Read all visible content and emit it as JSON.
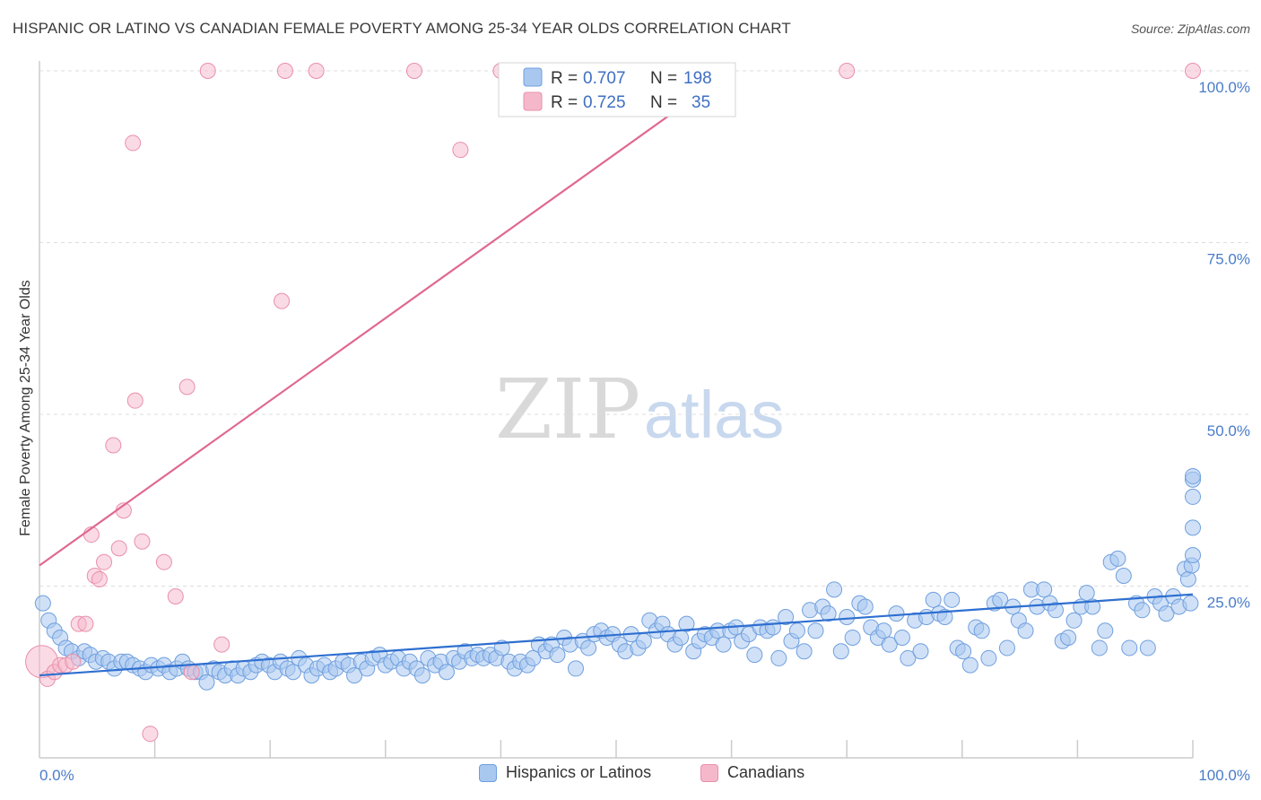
{
  "header": {
    "title": "HISPANIC OR LATINO VS CANADIAN FEMALE POVERTY AMONG 25-34 YEAR OLDS CORRELATION CHART",
    "source": "Source: ZipAtlas.com"
  },
  "watermark": {
    "zip": "ZIP",
    "atlas": "atlas"
  },
  "legend_box": {
    "rows": [
      {
        "r_label": "R = ",
        "r_value": "0.707",
        "n_label": "N = ",
        "n_value": "198"
      },
      {
        "r_label": "R = ",
        "r_value": "0.725",
        "n_label": "N = ",
        "n_value": "35"
      }
    ]
  },
  "bottom_legend": {
    "series1": "Hispanics or Latinos",
    "series2": "Canadians"
  },
  "colors": {
    "blue_fill": "#a9c8f0",
    "blue_stroke": "#6f9fde",
    "blue_line": "#2e6fd0",
    "pink_fill": "#f5b8cb",
    "pink_stroke": "#ea8fab",
    "pink_line": "#e06892",
    "tick_text": "#4a7cc9",
    "grid": "#dddddd"
  },
  "chart_data": {
    "type": "scatter",
    "title": "HISPANIC OR LATINO VS CANADIAN FEMALE POVERTY AMONG 25-34 YEAR OLDS CORRELATION CHART",
    "xlabel": "",
    "ylabel": "Female Poverty Among 25-34 Year Olds",
    "xlim": [
      0,
      100
    ],
    "ylim": [
      0,
      100
    ],
    "x_tick_labels": [
      "0.0%",
      "100.0%"
    ],
    "y_ticks": [
      25,
      50,
      75,
      100
    ],
    "y_tick_labels": [
      "25.0%",
      "50.0%",
      "75.0%",
      "100.0%"
    ],
    "grid": true,
    "legend_position": "top-center",
    "series": [
      {
        "name": "Hispanics or Latinos",
        "color": "#a9c8f0",
        "R": 0.707,
        "N": 198,
        "trend": [
          [
            0,
            12.0
          ],
          [
            100,
            23.8
          ]
        ],
        "points": [
          [
            0.3,
            22.5
          ],
          [
            0.8,
            20.0
          ],
          [
            1.3,
            18.5
          ],
          [
            1.8,
            17.5
          ],
          [
            2.3,
            16.0
          ],
          [
            2.8,
            15.5
          ],
          [
            3.4,
            14.5
          ],
          [
            3.9,
            15.5
          ],
          [
            4.4,
            15.0
          ],
          [
            4.9,
            14.0
          ],
          [
            5.5,
            14.5
          ],
          [
            6.0,
            14.0
          ],
          [
            6.5,
            13.0
          ],
          [
            7.1,
            14.0
          ],
          [
            7.6,
            14.0
          ],
          [
            8.1,
            13.5
          ],
          [
            8.7,
            13.0
          ],
          [
            9.2,
            12.5
          ],
          [
            9.7,
            13.5
          ],
          [
            10.3,
            13.0
          ],
          [
            10.8,
            13.5
          ],
          [
            11.3,
            12.5
          ],
          [
            11.9,
            13.0
          ],
          [
            12.4,
            14.0
          ],
          [
            12.9,
            13.0
          ],
          [
            13.5,
            12.5
          ],
          [
            14.0,
            12.5
          ],
          [
            14.5,
            11.0
          ],
          [
            15.1,
            13.0
          ],
          [
            15.6,
            12.5
          ],
          [
            16.1,
            12.0
          ],
          [
            16.7,
            13.0
          ],
          [
            17.2,
            12.0
          ],
          [
            17.7,
            13.0
          ],
          [
            18.3,
            12.5
          ],
          [
            18.8,
            13.5
          ],
          [
            19.3,
            14.0
          ],
          [
            19.9,
            13.5
          ],
          [
            20.4,
            12.5
          ],
          [
            20.9,
            14.0
          ],
          [
            21.5,
            13.0
          ],
          [
            22.0,
            12.5
          ],
          [
            22.5,
            14.5
          ],
          [
            23.1,
            13.5
          ],
          [
            23.6,
            12.0
          ],
          [
            24.1,
            13.0
          ],
          [
            24.7,
            13.5
          ],
          [
            25.2,
            12.5
          ],
          [
            25.7,
            13.0
          ],
          [
            26.3,
            14.0
          ],
          [
            26.8,
            13.5
          ],
          [
            27.3,
            12.0
          ],
          [
            27.9,
            14.0
          ],
          [
            28.4,
            13.0
          ],
          [
            28.9,
            14.5
          ],
          [
            29.5,
            15.0
          ],
          [
            30.0,
            13.5
          ],
          [
            30.5,
            14.0
          ],
          [
            31.1,
            14.5
          ],
          [
            31.6,
            13.0
          ],
          [
            32.1,
            14.0
          ],
          [
            32.7,
            13.0
          ],
          [
            33.2,
            12.0
          ],
          [
            33.7,
            14.5
          ],
          [
            34.3,
            13.5
          ],
          [
            34.8,
            14.0
          ],
          [
            35.3,
            12.5
          ],
          [
            35.9,
            14.5
          ],
          [
            36.4,
            14.0
          ],
          [
            36.9,
            15.5
          ],
          [
            37.5,
            14.5
          ],
          [
            38.0,
            15.0
          ],
          [
            38.5,
            14.5
          ],
          [
            39.1,
            15.0
          ],
          [
            39.6,
            14.5
          ],
          [
            40.1,
            16.0
          ],
          [
            40.7,
            14.0
          ],
          [
            41.2,
            13.0
          ],
          [
            41.7,
            14.0
          ],
          [
            42.3,
            13.5
          ],
          [
            42.8,
            14.5
          ],
          [
            43.3,
            16.5
          ],
          [
            43.9,
            15.5
          ],
          [
            44.4,
            16.5
          ],
          [
            44.9,
            15.0
          ],
          [
            45.5,
            17.5
          ],
          [
            46.0,
            16.5
          ],
          [
            46.5,
            13.0
          ],
          [
            47.1,
            17.0
          ],
          [
            47.6,
            16.0
          ],
          [
            48.1,
            18.0
          ],
          [
            48.7,
            18.5
          ],
          [
            49.2,
            17.5
          ],
          [
            49.7,
            18.0
          ],
          [
            50.3,
            16.5
          ],
          [
            50.8,
            15.5
          ],
          [
            51.3,
            18.0
          ],
          [
            51.9,
            16.0
          ],
          [
            52.4,
            17.0
          ],
          [
            52.9,
            20.0
          ],
          [
            53.5,
            18.5
          ],
          [
            54.0,
            19.5
          ],
          [
            54.5,
            18.0
          ],
          [
            55.1,
            16.5
          ],
          [
            55.6,
            17.5
          ],
          [
            56.1,
            19.5
          ],
          [
            56.7,
            15.5
          ],
          [
            57.2,
            17.0
          ],
          [
            57.7,
            18.0
          ],
          [
            58.3,
            17.5
          ],
          [
            58.8,
            18.5
          ],
          [
            59.3,
            16.5
          ],
          [
            59.9,
            18.5
          ],
          [
            60.4,
            19.0
          ],
          [
            60.9,
            17.0
          ],
          [
            61.5,
            18.0
          ],
          [
            62.0,
            15.0
          ],
          [
            62.5,
            19.0
          ],
          [
            63.1,
            18.5
          ],
          [
            63.6,
            19.0
          ],
          [
            64.1,
            14.5
          ],
          [
            64.7,
            20.5
          ],
          [
            65.2,
            17.0
          ],
          [
            65.7,
            18.5
          ],
          [
            66.3,
            15.5
          ],
          [
            66.8,
            21.5
          ],
          [
            67.3,
            18.5
          ],
          [
            67.9,
            22.0
          ],
          [
            68.4,
            21.0
          ],
          [
            68.9,
            24.5
          ],
          [
            69.5,
            15.5
          ],
          [
            70.0,
            20.5
          ],
          [
            70.5,
            17.5
          ],
          [
            71.1,
            22.5
          ],
          [
            71.6,
            22.0
          ],
          [
            72.1,
            19.0
          ],
          [
            72.7,
            17.5
          ],
          [
            73.2,
            18.5
          ],
          [
            73.7,
            16.5
          ],
          [
            74.3,
            21.0
          ],
          [
            74.8,
            17.5
          ],
          [
            75.3,
            14.5
          ],
          [
            75.9,
            20.0
          ],
          [
            76.4,
            15.5
          ],
          [
            76.9,
            20.5
          ],
          [
            77.5,
            23.0
          ],
          [
            78.0,
            21.0
          ],
          [
            78.5,
            20.5
          ],
          [
            79.1,
            23.0
          ],
          [
            79.6,
            16.0
          ],
          [
            80.1,
            15.5
          ],
          [
            80.7,
            13.5
          ],
          [
            81.2,
            19.0
          ],
          [
            81.7,
            18.5
          ],
          [
            82.3,
            14.5
          ],
          [
            82.8,
            22.5
          ],
          [
            83.3,
            23.0
          ],
          [
            83.9,
            16.0
          ],
          [
            84.4,
            22.0
          ],
          [
            84.9,
            20.0
          ],
          [
            85.5,
            18.5
          ],
          [
            86.0,
            24.5
          ],
          [
            86.5,
            22.0
          ],
          [
            87.1,
            24.5
          ],
          [
            87.6,
            22.5
          ],
          [
            88.1,
            21.5
          ],
          [
            88.7,
            17.0
          ],
          [
            89.2,
            17.5
          ],
          [
            89.7,
            20.0
          ],
          [
            90.3,
            22.0
          ],
          [
            90.8,
            24.0
          ],
          [
            91.3,
            22.0
          ],
          [
            91.9,
            16.0
          ],
          [
            92.4,
            18.5
          ],
          [
            92.9,
            28.5
          ],
          [
            93.5,
            29.0
          ],
          [
            94.0,
            26.5
          ],
          [
            94.5,
            16.0
          ],
          [
            95.1,
            22.5
          ],
          [
            95.6,
            21.5
          ],
          [
            96.1,
            16.0
          ],
          [
            96.7,
            23.5
          ],
          [
            97.2,
            22.5
          ],
          [
            97.7,
            21.0
          ],
          [
            98.3,
            23.5
          ],
          [
            98.8,
            22.0
          ],
          [
            99.3,
            27.5
          ],
          [
            99.6,
            26.0
          ],
          [
            99.8,
            22.5
          ],
          [
            99.9,
            28.0
          ],
          [
            100.0,
            33.5
          ],
          [
            100.0,
            29.5
          ],
          [
            100.0,
            38.0
          ],
          [
            100.0,
            40.5
          ],
          [
            100.0,
            41.0
          ]
        ]
      },
      {
        "name": "Canadians",
        "color": "#f5b8cb",
        "R": 0.725,
        "N": 35,
        "trend": [
          [
            0,
            28.0
          ],
          [
            60,
            100
          ]
        ],
        "points": [
          [
            0.2,
            14.0
          ],
          [
            0.7,
            11.5
          ],
          [
            1.3,
            12.5
          ],
          [
            1.8,
            13.5
          ],
          [
            2.3,
            13.5
          ],
          [
            2.9,
            14.0
          ],
          [
            3.4,
            19.5
          ],
          [
            4.0,
            19.5
          ],
          [
            4.5,
            32.5
          ],
          [
            4.8,
            26.5
          ],
          [
            5.2,
            26.0
          ],
          [
            5.6,
            28.5
          ],
          [
            6.4,
            45.5
          ],
          [
            6.9,
            30.5
          ],
          [
            7.3,
            36.0
          ],
          [
            8.1,
            89.5
          ],
          [
            8.3,
            52.0
          ],
          [
            8.9,
            31.5
          ],
          [
            9.6,
            3.5
          ],
          [
            10.8,
            28.5
          ],
          [
            11.8,
            23.5
          ],
          [
            12.8,
            54.0
          ],
          [
            13.2,
            12.5
          ],
          [
            14.6,
            100
          ],
          [
            15.8,
            16.5
          ],
          [
            21.0,
            66.5
          ],
          [
            21.3,
            100
          ],
          [
            24.0,
            100
          ],
          [
            32.5,
            100
          ],
          [
            36.5,
            88.5
          ],
          [
            40.0,
            100
          ],
          [
            55.0,
            100
          ],
          [
            70.0,
            100
          ],
          [
            100.0,
            100
          ]
        ]
      }
    ]
  }
}
